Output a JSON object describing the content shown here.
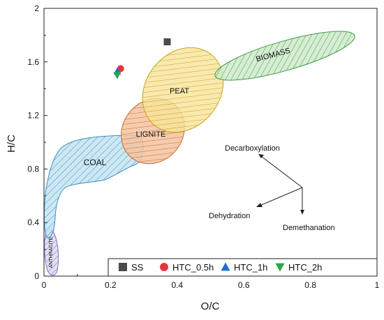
{
  "chart_data": {
    "type": "scatter",
    "title": "",
    "xlabel": "O/C",
    "ylabel": "H/C",
    "xlim": [
      0,
      1
    ],
    "ylim": [
      0,
      2
    ],
    "x_ticks": [
      "0",
      "0.2",
      "0.4",
      "0.6",
      "0.8",
      "1"
    ],
    "y_ticks": [
      "0",
      "0.4",
      "0.8",
      "1.2",
      "1.6",
      "2"
    ],
    "grid": false,
    "legend_position": "bottom-right",
    "series": [
      {
        "name": "SS",
        "marker": "square",
        "color": "#4a4a4a",
        "x": [
          0.37
        ],
        "y": [
          1.75
        ]
      },
      {
        "name": "HTC_0.5h",
        "marker": "circle",
        "color": "#e8323c",
        "x": [
          0.23
        ],
        "y": [
          1.55
        ]
      },
      {
        "name": "HTC_1h",
        "marker": "triangle-up",
        "color": "#1f6fd1",
        "x": [
          0.22
        ],
        "y": [
          1.53
        ]
      },
      {
        "name": "HTC_2h",
        "marker": "triangle-down",
        "color": "#2aa84a",
        "x": [
          0.22
        ],
        "y": [
          1.5
        ]
      }
    ],
    "regions": [
      {
        "name": "BIOMASS",
        "color": "#6cbf6a"
      },
      {
        "name": "PEAT",
        "color": "#ecc94b"
      },
      {
        "name": "LIGNITE",
        "color": "#e8955a"
      },
      {
        "name": "COAL",
        "color": "#79c3e2"
      },
      {
        "name": "ANTHRACITE",
        "color": "#a79fd6"
      }
    ],
    "annotations": {
      "decarboxylation": "Decarboxylation",
      "dehydration": "Dehydration",
      "demethanation": "Demethanation"
    }
  }
}
